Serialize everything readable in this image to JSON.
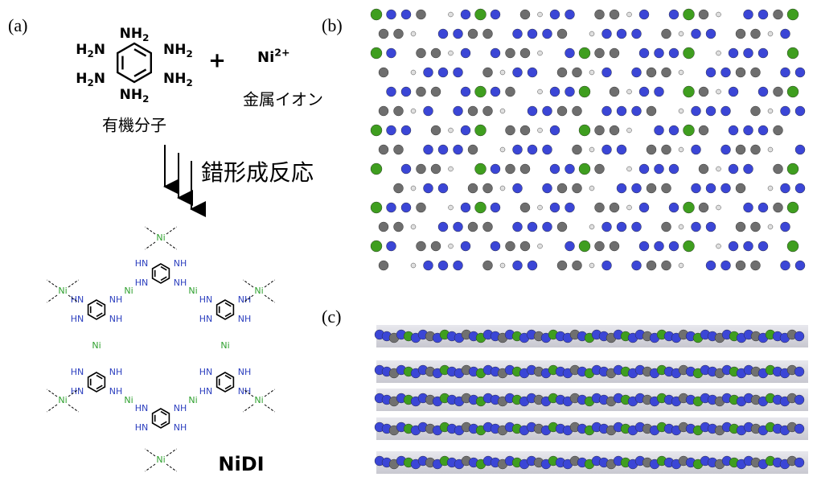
{
  "labels": {
    "a": "(a)",
    "b": "(b)",
    "c": "(c)"
  },
  "reactants": {
    "amine": {
      "main": "NH",
      "sub": "2"
    },
    "amine_left": {
      "h": "H",
      "sub": "2",
      "n": "N"
    },
    "plus": "+",
    "metal": {
      "main": "Ni",
      "sup": "2+"
    },
    "metal_caption": "金属イオン",
    "organic_caption": "有機分子"
  },
  "reaction": "錯形成反応",
  "network": {
    "nh": "NH",
    "hn": "HN",
    "ni": "Ni"
  },
  "product": "NiDI"
}
